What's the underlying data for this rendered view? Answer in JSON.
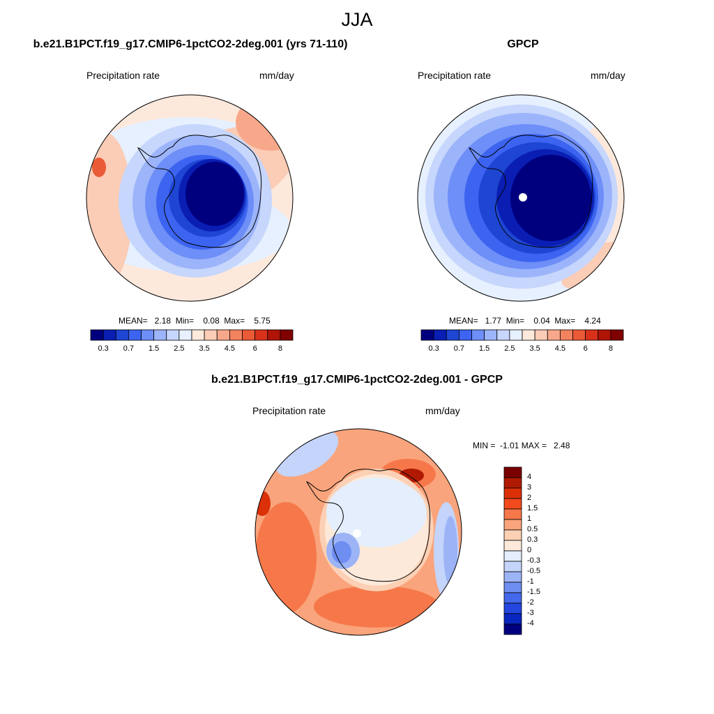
{
  "figure_title": "JJA",
  "panels": [
    {
      "title": "b.e21.B1PCT.f19_g17.CMIP6-1pctCO2-2deg.001 (yrs 71-110)",
      "left_label": "Precipitation rate",
      "right_label": "mm/day",
      "stats_text": "MEAN=   2.18  Min=    0.08  Max=    5.75"
    },
    {
      "title": "GPCP",
      "left_label": "Precipitation rate",
      "right_label": "mm/day",
      "stats_text": "MEAN=   1.77  Min=    0.04  Max=    4.24"
    },
    {
      "title": "b.e21.B1PCT.f19_g17.CMIP6-1pctCO2-2deg.001 - GPCP",
      "left_label": "Precipitation rate",
      "right_label": "mm/day",
      "stats_text": "MIN =  -1.01 MAX =   2.48"
    }
  ],
  "colorbars": {
    "field": {
      "colors": [
        "#00007f",
        "#0a1eb4",
        "#1e46d2",
        "#3c64f0",
        "#6e8ef8",
        "#9cb4fa",
        "#c6d6fc",
        "#e6f0fe",
        "#fde8dc",
        "#fbccb6",
        "#f8a88a",
        "#f3825e",
        "#ea5a36",
        "#d8321a",
        "#b01406",
        "#800000"
      ],
      "labels": [
        "0.3",
        "0.7",
        "1.5",
        "2.5",
        "3.5",
        "4.5",
        "6",
        "8"
      ]
    },
    "diff": {
      "colors": [
        "#7a0000",
        "#b01a02",
        "#dc3008",
        "#f24a1c",
        "#f6784a",
        "#f9a47c",
        "#fcd0b4",
        "#fde9da",
        "#e4eefc",
        "#c4d4fa",
        "#9cb4f6",
        "#6e8ef2",
        "#4468ec",
        "#2346e0",
        "#0a26c0",
        "#00007f"
      ],
      "labels": [
        "4",
        "3",
        "2",
        "1.5",
        "1",
        "0.5",
        "0.3",
        "0",
        "-0.3",
        "-0.5",
        "-1",
        "-1.5",
        "-2",
        "-3",
        "-4"
      ]
    }
  }
}
